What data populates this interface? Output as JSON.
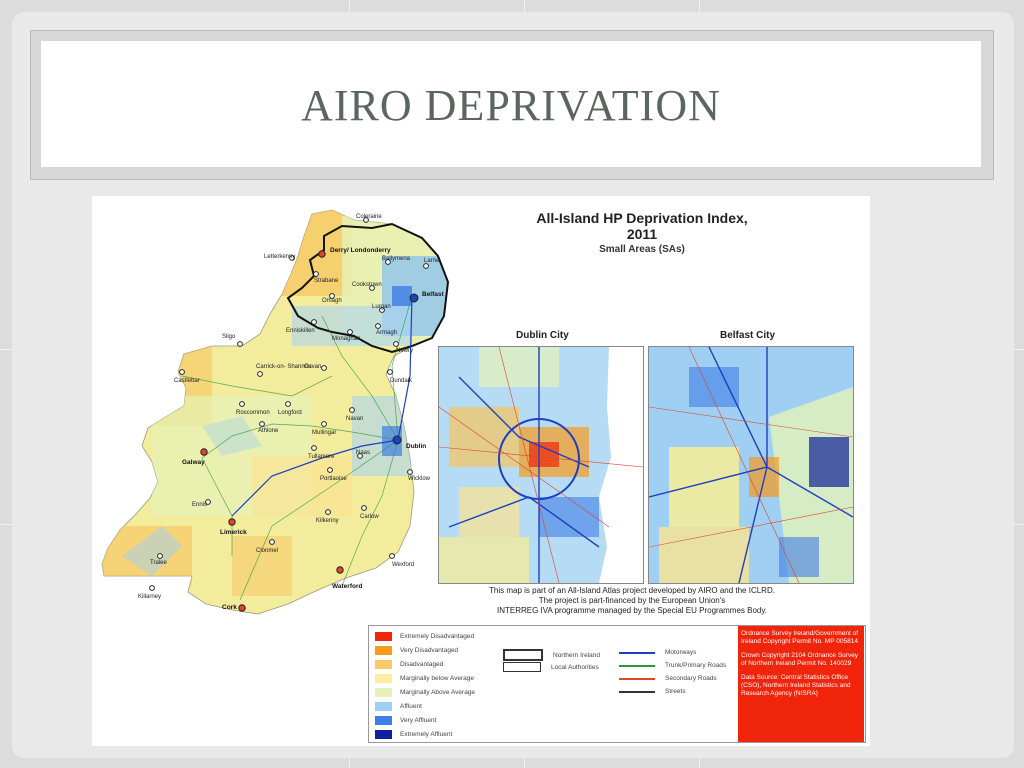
{
  "slide": {
    "title": "AIRO DEPRIVATION"
  },
  "map": {
    "title": "All-Island HP Deprivation Index, 2011",
    "subtitle": "Small Areas (SAs)",
    "insets": {
      "dublin": "Dublin City",
      "belfast": "Belfast City"
    },
    "places": [
      "Coleraine",
      "Derry/ Londonderry",
      "Letterkenny",
      "Ballymena",
      "Larne",
      "Strabane",
      "Cookstown",
      "Belfast",
      "Omagh",
      "Lurgan",
      "Armagh",
      "Enniskillen",
      "Monaghan",
      "Newry",
      "Sligo",
      "Carrick-on- Shannon",
      "Cavan",
      "Dundalk",
      "Castlebar",
      "Roscommon",
      "Longford",
      "Navan",
      "Athlone",
      "Mullingar",
      "Dublin",
      "Galway",
      "Tullamore",
      "Portlaoise",
      "Naas",
      "Wicklow",
      "Ennis",
      "Kilkenny",
      "Carlow",
      "Limerick",
      "Clonmel",
      "Tralee",
      "Wexford",
      "Killarney",
      "Waterford",
      "Cork"
    ],
    "note_lines": [
      "This map is part of an All-Island Atlas project developed by AIRO and the ICLRD.",
      "The project is part-financed by the European Union's",
      "INTERREG IVA programme managed by the Special EU Programmes Body."
    ],
    "legend": {
      "classes": [
        {
          "label": "Extremely Disadvantaged",
          "color": "#f0250c"
        },
        {
          "label": "Very Disadvantaged",
          "color": "#f79a1e"
        },
        {
          "label": "Disadvantaged",
          "color": "#fbc96a"
        },
        {
          "label": "Marginally below Average",
          "color": "#fbeea3"
        },
        {
          "label": "Marginally Above Average",
          "color": "#e4f2b8"
        },
        {
          "label": "Affluent",
          "color": "#9fd0f3"
        },
        {
          "label": "Very Affluent",
          "color": "#3f7de6"
        },
        {
          "label": "Extremely Affluent",
          "color": "#10209a"
        }
      ],
      "boundaries": [
        {
          "label": "Northern Ireland"
        },
        {
          "label": "Local Authorities"
        }
      ],
      "roads": [
        {
          "label": "Motorways",
          "color": "#1f3fbf"
        },
        {
          "label": "Trunk/Primary Roads",
          "color": "#2a9a3a"
        },
        {
          "label": "Secondary Roads",
          "color": "#e0452a"
        },
        {
          "label": "Streets",
          "color": "#333333"
        }
      ]
    },
    "credits": [
      "Ordnance Survey Ireland/Government of Ireland Copyright Permit No. MP 005814",
      "Crown Copyright 2104 Ordnance Survey of Northern Ireland Permit No. 140029",
      "Data Source: Central Statistics Office (CSO), Northern Ireland Statistics and Research Agency (NISRA)"
    ]
  }
}
